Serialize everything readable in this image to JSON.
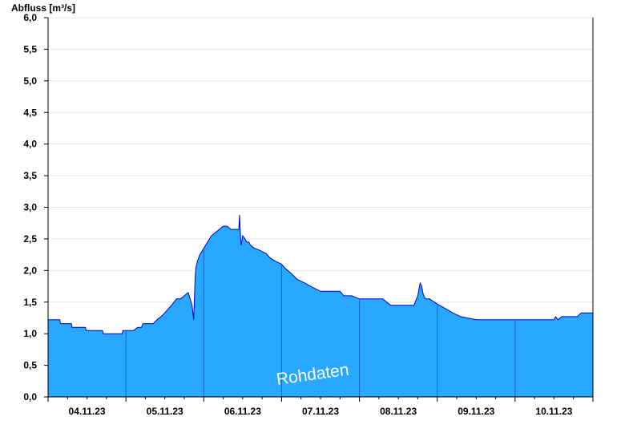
{
  "chart_data": {
    "type": "area",
    "ylabel": "Abfluss [m³/s]",
    "ylim": [
      0,
      6.0
    ],
    "yticks": [
      "0,0",
      "0,5",
      "1,0",
      "1,5",
      "2,0",
      "2,5",
      "3,0",
      "3,5",
      "4,0",
      "4,5",
      "5,0",
      "5,5",
      "6,0"
    ],
    "xlim": [
      0,
      7
    ],
    "day_boundaries": [
      1,
      2,
      3,
      4,
      5,
      6
    ],
    "xtick_labels": [
      "04.11.23",
      "05.11.23",
      "06.11.23",
      "07.11.23",
      "08.11.23",
      "09.11.23",
      "10.11.23"
    ],
    "watermark": "Rohdaten",
    "grid": true,
    "fill_color": "#29A8FF",
    "line_color": "#0000CC",
    "grid_color": "#E6E6E6",
    "series": [
      {
        "x": [
          0.0,
          0.15,
          0.16,
          0.3,
          0.31,
          0.48,
          0.49,
          0.7,
          0.71,
          0.95,
          0.96,
          1.0,
          1.1,
          1.15,
          1.2,
          1.22,
          1.35,
          1.4,
          1.45,
          1.5,
          1.55,
          1.6,
          1.65,
          1.7,
          1.75,
          1.8,
          1.85,
          1.87,
          1.88,
          1.89,
          1.9,
          1.92,
          1.95,
          2.0,
          2.05,
          2.1,
          2.15,
          2.2,
          2.25,
          2.3,
          2.35,
          2.4,
          2.45,
          2.46,
          2.47,
          2.48,
          2.5,
          2.53,
          2.55,
          2.58,
          2.6,
          2.65,
          2.7,
          2.8,
          2.85,
          2.9,
          3.0,
          3.05,
          3.1,
          3.15,
          3.2,
          3.3,
          3.4,
          3.5,
          3.6,
          3.7,
          3.75,
          3.8,
          3.9,
          4.0,
          4.1,
          4.3,
          4.4,
          4.7,
          4.75,
          4.78,
          4.8,
          4.82,
          4.85,
          4.9,
          5.0,
          5.1,
          5.2,
          5.3,
          5.5,
          6.0,
          6.5,
          6.52,
          6.55,
          6.6,
          6.8,
          6.85,
          7.0
        ],
        "y": [
          1.22,
          1.22,
          1.16,
          1.16,
          1.1,
          1.1,
          1.05,
          1.05,
          1.0,
          1.0,
          1.05,
          1.05,
          1.05,
          1.1,
          1.1,
          1.16,
          1.16,
          1.22,
          1.27,
          1.33,
          1.4,
          1.47,
          1.55,
          1.55,
          1.6,
          1.65,
          1.45,
          1.22,
          1.55,
          1.9,
          2.05,
          2.15,
          2.25,
          2.35,
          2.45,
          2.55,
          2.6,
          2.65,
          2.7,
          2.7,
          2.65,
          2.65,
          2.65,
          2.88,
          2.6,
          2.4,
          2.55,
          2.5,
          2.45,
          2.45,
          2.4,
          2.35,
          2.33,
          2.27,
          2.2,
          2.16,
          2.1,
          2.03,
          1.98,
          1.92,
          1.86,
          1.8,
          1.73,
          1.67,
          1.67,
          1.67,
          1.67,
          1.6,
          1.6,
          1.55,
          1.55,
          1.55,
          1.45,
          1.45,
          1.6,
          1.8,
          1.75,
          1.62,
          1.55,
          1.55,
          1.47,
          1.4,
          1.33,
          1.27,
          1.22,
          1.22,
          1.22,
          1.27,
          1.22,
          1.27,
          1.27,
          1.33,
          1.33
        ]
      }
    ]
  }
}
